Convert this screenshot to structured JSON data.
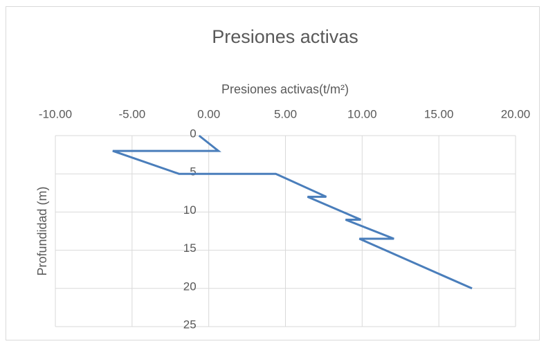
{
  "chart_data": {
    "type": "line",
    "title": "Presiones activas",
    "xlabel": "Presiones activas(t/m²)",
    "ylabel": "Profundidad (m)",
    "x": [
      -0.63,
      0.63,
      -6.26,
      -1.94,
      4.37,
      7.66,
      6.44,
      9.91,
      8.92,
      12.07,
      9.82,
      17.16
    ],
    "series": [
      {
        "name": "Presiones activas",
        "color": "#4a7ebb",
        "values": [
          0,
          2,
          2,
          5,
          5,
          8,
          8,
          11,
          11,
          13.5,
          13.5,
          20
        ]
      }
    ],
    "xlim": [
      -10,
      20
    ],
    "xticks": [
      {
        "value": -10,
        "label": "-10.00"
      },
      {
        "value": -5,
        "label": "-5.00"
      },
      {
        "value": 0,
        "label": "0.00"
      },
      {
        "value": 5,
        "label": "5.00"
      },
      {
        "value": 10,
        "label": "10.00"
      },
      {
        "value": 15,
        "label": "15.00"
      },
      {
        "value": 20,
        "label": "20.00"
      }
    ],
    "ylim": [
      0,
      25
    ],
    "yticks": [
      0,
      5,
      10,
      15,
      20,
      25
    ],
    "yinvert": true,
    "xaxis_position": "top",
    "grid": true
  }
}
